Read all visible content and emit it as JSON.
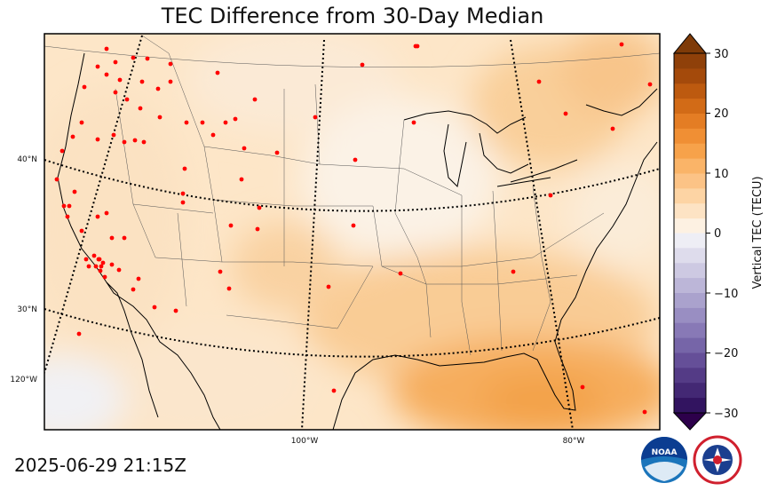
{
  "title": "TEC Difference from 30-Day Median",
  "timestamp": "2025-06-29 21:15Z",
  "colorbar": {
    "label": "Vertical TEC (TECU)",
    "ticks": [
      "30",
      "20",
      "10",
      "0",
      "−10",
      "−20",
      "−30"
    ],
    "range": [
      -30,
      30
    ]
  },
  "grid_labels": {
    "lat": [
      "40°N",
      "30°N",
      "120°W"
    ],
    "lon": [
      "100°W",
      "80°W"
    ]
  },
  "logos": {
    "noaa": "NOAA",
    "nws": "NATIONAL WEATHER SERVICE"
  },
  "colors": {
    "positive_max": "#7f3b08",
    "positive_mid": "#f7a43f",
    "neutral": "#f7f7f7",
    "negative_mid": "#8073ac",
    "negative_max": "#2d004b",
    "station": "#ff0000"
  }
}
